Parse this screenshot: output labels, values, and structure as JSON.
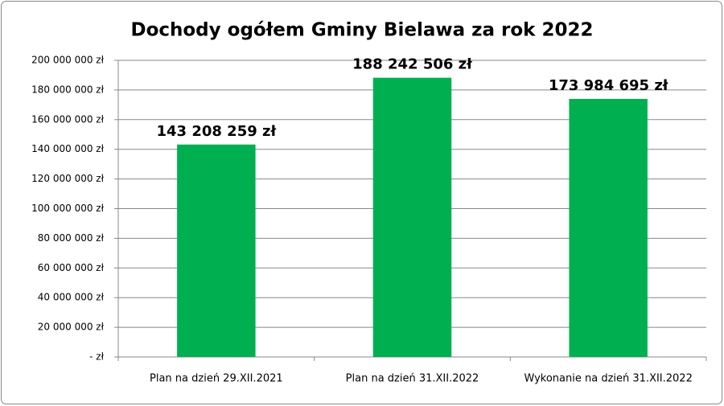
{
  "chart_data": {
    "type": "bar",
    "title": "Dochody ogółem Gminy Bielawa za rok 2022",
    "categories": [
      "Plan na dzień 29.XII.2021",
      "Plan na dzień 31.XII.2022",
      "Wykonanie na dzień 31.XII.2022"
    ],
    "values": [
      143208259,
      188242506,
      173984695
    ],
    "value_labels": [
      "143 208 259 zł",
      "188 242 506 zł",
      "173 984 695 zł"
    ],
    "color": "#00b050",
    "ylim": [
      0,
      200000000
    ],
    "yticks": [
      {
        "value": 0,
        "label": "-  zł"
      },
      {
        "value": 20000000,
        "label": "20 000 000 zł"
      },
      {
        "value": 40000000,
        "label": "40 000 000 zł"
      },
      {
        "value": 60000000,
        "label": "60 000 000 zł"
      },
      {
        "value": 80000000,
        "label": "80 000 000 zł"
      },
      {
        "value": 100000000,
        "label": "100 000 000 zł"
      },
      {
        "value": 120000000,
        "label": "120 000 000 zł"
      },
      {
        "value": 140000000,
        "label": "140 000 000 zł"
      },
      {
        "value": 160000000,
        "label": "160 000 000 zł"
      },
      {
        "value": 180000000,
        "label": "180 000 000 zł"
      },
      {
        "value": 200000000,
        "label": "200 000 000 zł"
      }
    ],
    "grid": true
  }
}
